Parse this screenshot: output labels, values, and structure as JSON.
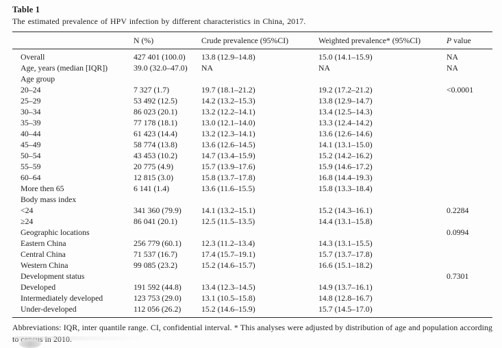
{
  "page": {
    "title": "Table 1",
    "caption": "The estimated prevalence of HPV infection by different characteristics in China, 2017.",
    "footnote": "Abbreviations: IQR, inter quantile range. CI, confidential interval. * This analyses were adjusted by distribution of age and population according to census in 2010."
  },
  "colors": {
    "text": "#1e1e1e",
    "rule": "#2b2b2b",
    "background": "#fdfdfd"
  },
  "table": {
    "columns": [
      "",
      "N (%)",
      "Crude prevalence (95%CI)",
      "Weighted prevalence* (95%CI)",
      "P value"
    ],
    "rows": [
      {
        "label": "Overall",
        "n": "427 401 (100.0)",
        "crude": "13.8 (12.9–14.8)",
        "weighted": "15.0 (14.1–15.9)",
        "p": "NA"
      },
      {
        "label": "Age, years (median [IQR])",
        "n": "39.0 (32.0–47.0)",
        "crude": "NA",
        "weighted": "NA",
        "p": "NA"
      },
      {
        "label": "Age group",
        "n": "",
        "crude": "",
        "weighted": "",
        "p": ""
      },
      {
        "label": "20–24",
        "n": "7 327 (1.7)",
        "crude": "19.7 (18.1–21.2)",
        "weighted": "19.2 (17.2–21.2)",
        "p": "<0.0001"
      },
      {
        "label": "25–29",
        "n": "53 492 (12.5)",
        "crude": "14.2 (13.2–15.3)",
        "weighted": "13.8 (12.9–14.7)",
        "p": ""
      },
      {
        "label": "30–34",
        "n": "86 023 (20.1)",
        "crude": "13.2 (12.2–14.1)",
        "weighted": "13.4 (12.5–14.3)",
        "p": ""
      },
      {
        "label": "35–39",
        "n": "77 178 (18.1)",
        "crude": "13.0 (12.1–14.0)",
        "weighted": "13.3 (12.4–14.2)",
        "p": ""
      },
      {
        "label": "40–44",
        "n": "61 423 (14.4)",
        "crude": "13.2 (12.3–14.1)",
        "weighted": "13.6 (12.6–14.6)",
        "p": ""
      },
      {
        "label": "45–49",
        "n": "58 774 (13.8)",
        "crude": "13.6 (12.6–14.5)",
        "weighted": "14.1 (13.1–15.0)",
        "p": ""
      },
      {
        "label": "50–54",
        "n": "43 453 (10.2)",
        "crude": "14.7 (13.4–15.9)",
        "weighted": "15.2 (14.2–16.2)",
        "p": ""
      },
      {
        "label": "55–59",
        "n": "20 775 (4.9)",
        "crude": "15.7 (13.9–17.6)",
        "weighted": "15.9 (14.6–17.2)",
        "p": ""
      },
      {
        "label": "60–64",
        "n": "12 815 (3.0)",
        "crude": "15.8 (13.7–17.8)",
        "weighted": "16.8 (14.4–19.3)",
        "p": ""
      },
      {
        "label": "More then 65",
        "n": "6 141 (1.4)",
        "crude": "13.6 (11.6–15.5)",
        "weighted": "15.8 (13.3–18.4)",
        "p": ""
      },
      {
        "label": "Body mass index",
        "n": "",
        "crude": "",
        "weighted": "",
        "p": ""
      },
      {
        "label": "<24",
        "n": "341 360 (79.9)",
        "crude": "14.1 (13.2–15.1)",
        "weighted": "15.2 (14.3–16.1)",
        "p": "0.2284"
      },
      {
        "label": "≥24",
        "n": "86 041 (20.1)",
        "crude": "12.5 (11.5–13.5)",
        "weighted": "14.4 (13.1–15.8)",
        "p": ""
      },
      {
        "label": "Geographic locations",
        "n": "",
        "crude": "",
        "weighted": "",
        "p": "0.0994"
      },
      {
        "label": "Eastern China",
        "n": "256 779 (60.1)",
        "crude": "12.3 (11.2–13.4)",
        "weighted": "14.3 (13.1–15.5)",
        "p": ""
      },
      {
        "label": "Central China",
        "n": "71 537 (16.7)",
        "crude": "17.4 (15.7–19.1)",
        "weighted": "15.7 (13.7–17.8)",
        "p": ""
      },
      {
        "label": "Western China",
        "n": "99 085 (23.2)",
        "crude": "15.2 (14.6–15.7)",
        "weighted": "16.6 (15.1–18.2)",
        "p": ""
      },
      {
        "label": "Development status",
        "n": "",
        "crude": "",
        "weighted": "",
        "p": "0.7301"
      },
      {
        "label": "Developed",
        "n": "191 592 (44.8)",
        "crude": "13.4 (12.3–14.5)",
        "weighted": "14.9 (13.7–16.1)",
        "p": ""
      },
      {
        "label": "Intermediately developed",
        "n": "123 753 (29.0)",
        "crude": "13.1 (10.5–15.8)",
        "weighted": "14.8 (12.8–16.7)",
        "p": ""
      },
      {
        "label": "Under-developed",
        "n": "112 056 (26.2)",
        "crude": "15.2 (14.6–15.9)",
        "weighted": "15.7 (14.5–17.0)",
        "p": ""
      }
    ]
  }
}
